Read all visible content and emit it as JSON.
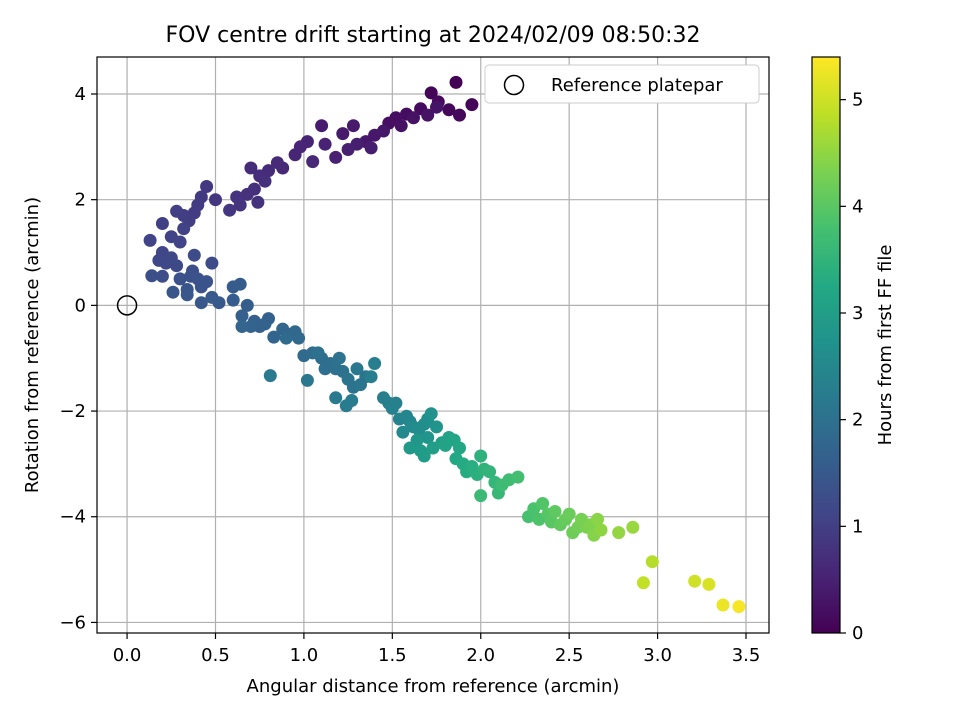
{
  "chart_data": {
    "type": "scatter",
    "title": "FOV centre drift starting at 2024/02/09 08:50:32",
    "xlabel": "Angular distance from reference (arcmin)",
    "ylabel": "Rotation from reference (arcmin)",
    "xlim": [
      -0.17,
      3.63
    ],
    "ylim": [
      -6.2,
      4.7
    ],
    "xticks": [
      0.0,
      0.5,
      1.0,
      1.5,
      2.0,
      2.5,
      3.0,
      3.5
    ],
    "xtick_labels": [
      "0.0",
      "0.5",
      "1.0",
      "1.5",
      "2.0",
      "2.5",
      "3.0",
      "3.5"
    ],
    "yticks": [
      -6,
      -4,
      -2,
      0,
      2,
      4
    ],
    "ytick_labels": [
      "−6",
      "−4",
      "−2",
      "0",
      "2",
      "4"
    ],
    "grid": true,
    "legend": {
      "position": "top-right",
      "entries": [
        "Reference platepar"
      ]
    },
    "reference_point": {
      "x": 0.0,
      "y": 0.0,
      "marker": "hollow-circle"
    },
    "colorbar": {
      "label": "Hours from first FF file",
      "colormap": "viridis",
      "range": [
        0,
        5.4
      ],
      "ticks": [
        0,
        1,
        2,
        3,
        4,
        5
      ],
      "tick_labels": [
        "0",
        "1",
        "2",
        "3",
        "4",
        "5"
      ]
    },
    "series": [
      {
        "fields": [
          "x",
          "y",
          "hours"
        ],
        "points": [
          [
            1.86,
            4.22,
            0.02
          ],
          [
            1.72,
            4.02,
            0.05
          ],
          [
            1.95,
            3.8,
            0.08
          ],
          [
            1.82,
            3.7,
            0.1
          ],
          [
            1.88,
            3.6,
            0.12
          ],
          [
            1.76,
            3.85,
            0.14
          ],
          [
            1.66,
            3.72,
            0.16
          ],
          [
            1.58,
            3.62,
            0.18
          ],
          [
            1.52,
            3.55,
            0.2
          ],
          [
            1.48,
            3.45,
            0.22
          ],
          [
            1.55,
            3.4,
            0.24
          ],
          [
            1.62,
            3.55,
            0.26
          ],
          [
            1.7,
            3.6,
            0.28
          ],
          [
            1.75,
            3.75,
            0.3
          ],
          [
            1.45,
            3.3,
            0.32
          ],
          [
            1.4,
            3.22,
            0.34
          ],
          [
            1.35,
            3.1,
            0.36
          ],
          [
            1.28,
            3.4,
            0.38
          ],
          [
            1.22,
            3.25,
            0.4
          ],
          [
            1.1,
            3.4,
            0.42
          ],
          [
            1.38,
            2.98,
            0.44
          ],
          [
            1.3,
            3.05,
            0.46
          ],
          [
            1.25,
            2.95,
            0.48
          ],
          [
            1.18,
            2.8,
            0.5
          ],
          [
            1.12,
            3.05,
            0.52
          ],
          [
            1.02,
            3.1,
            0.54
          ],
          [
            0.98,
            3.0,
            0.56
          ],
          [
            0.95,
            2.85,
            0.58
          ],
          [
            1.05,
            2.72,
            0.6
          ],
          [
            0.88,
            2.6,
            0.62
          ],
          [
            0.85,
            2.7,
            0.64
          ],
          [
            0.8,
            2.55,
            0.66
          ],
          [
            0.75,
            2.45,
            0.68
          ],
          [
            0.7,
            2.6,
            0.7
          ],
          [
            0.78,
            2.35,
            0.72
          ],
          [
            0.72,
            2.2,
            0.74
          ],
          [
            0.68,
            2.1,
            0.76
          ],
          [
            0.74,
            1.95,
            0.78
          ],
          [
            0.62,
            2.05,
            0.8
          ],
          [
            0.64,
            1.9,
            0.82
          ],
          [
            0.58,
            1.8,
            0.84
          ],
          [
            0.5,
            2.0,
            0.86
          ],
          [
            0.45,
            2.25,
            0.88
          ],
          [
            0.42,
            2.05,
            0.9
          ],
          [
            0.4,
            1.9,
            0.92
          ],
          [
            0.38,
            1.75,
            0.94
          ],
          [
            0.35,
            1.6,
            0.96
          ],
          [
            0.32,
            1.7,
            0.98
          ],
          [
            0.28,
            1.78,
            1.0
          ],
          [
            0.2,
            1.55,
            1.02
          ],
          [
            0.25,
            1.3,
            1.04
          ],
          [
            0.32,
            1.45,
            1.06
          ],
          [
            0.3,
            1.2,
            1.08
          ],
          [
            0.13,
            1.23,
            1.1
          ],
          [
            0.2,
            1.0,
            1.12
          ],
          [
            0.18,
            0.85,
            1.14
          ],
          [
            0.22,
            0.8,
            1.16
          ],
          [
            0.25,
            0.9,
            1.18
          ],
          [
            0.28,
            0.75,
            1.2
          ],
          [
            0.38,
            0.95,
            1.22
          ],
          [
            0.48,
            0.8,
            1.24
          ],
          [
            0.37,
            0.65,
            1.26
          ],
          [
            0.2,
            0.55,
            1.28
          ],
          [
            0.14,
            0.56,
            1.3
          ],
          [
            0.3,
            0.5,
            1.32
          ],
          [
            0.36,
            0.55,
            1.34
          ],
          [
            0.4,
            0.5,
            1.36
          ],
          [
            0.45,
            0.45,
            1.38
          ],
          [
            0.42,
            0.35,
            1.4
          ],
          [
            0.34,
            0.3,
            1.42
          ],
          [
            0.26,
            0.25,
            1.44
          ],
          [
            0.34,
            0.2,
            1.46
          ],
          [
            0.42,
            0.05,
            1.48
          ],
          [
            0.48,
            0.15,
            1.5
          ],
          [
            0.52,
            0.05,
            1.52
          ],
          [
            0.6,
            0.35,
            1.54
          ],
          [
            0.64,
            0.4,
            1.56
          ],
          [
            0.6,
            0.1,
            1.58
          ],
          [
            0.68,
            0.0,
            1.6
          ],
          [
            0.65,
            -0.2,
            1.62
          ],
          [
            0.72,
            -0.3,
            1.64
          ],
          [
            0.75,
            -0.4,
            1.66
          ],
          [
            0.8,
            -0.25,
            1.68
          ],
          [
            0.78,
            -0.35,
            1.7
          ],
          [
            0.7,
            -0.4,
            1.72
          ],
          [
            0.65,
            -0.4,
            1.74
          ],
          [
            0.83,
            -0.6,
            1.76
          ],
          [
            0.88,
            -0.45,
            1.78
          ],
          [
            0.92,
            -0.55,
            1.8
          ],
          [
            0.95,
            -0.5,
            1.82
          ],
          [
            0.97,
            -0.62,
            1.84
          ],
          [
            0.9,
            -0.62,
            1.86
          ],
          [
            1.0,
            -0.95,
            1.88
          ],
          [
            1.05,
            -0.9,
            1.9
          ],
          [
            1.1,
            -1.0,
            1.92
          ],
          [
            1.12,
            -1.2,
            1.94
          ],
          [
            1.15,
            -1.1,
            1.96
          ],
          [
            1.18,
            -1.2,
            1.98
          ],
          [
            1.08,
            -0.9,
            2.0
          ],
          [
            1.2,
            -1.0,
            2.02
          ],
          [
            1.22,
            -1.25,
            2.04
          ],
          [
            1.25,
            -1.4,
            2.06
          ],
          [
            1.28,
            -1.55,
            2.08
          ],
          [
            1.32,
            -1.5,
            2.1
          ],
          [
            1.35,
            -1.35,
            2.12
          ],
          [
            1.3,
            -1.2,
            2.14
          ],
          [
            1.02,
            -1.42,
            2.16
          ],
          [
            0.81,
            -1.33,
            2.18
          ],
          [
            1.18,
            -1.75,
            2.2
          ],
          [
            1.24,
            -1.9,
            2.22
          ],
          [
            1.27,
            -1.8,
            2.24
          ],
          [
            1.38,
            -1.35,
            2.26
          ],
          [
            1.4,
            -1.1,
            2.28
          ],
          [
            1.45,
            -1.75,
            2.3
          ],
          [
            1.48,
            -1.85,
            2.32
          ],
          [
            1.5,
            -1.95,
            2.34
          ],
          [
            1.52,
            -1.85,
            2.36
          ],
          [
            1.54,
            -2.15,
            2.4
          ],
          [
            1.58,
            -2.1,
            2.44
          ],
          [
            1.6,
            -2.2,
            2.48
          ],
          [
            1.56,
            -2.4,
            2.52
          ],
          [
            1.62,
            -2.3,
            2.56
          ],
          [
            1.65,
            -2.35,
            2.6
          ],
          [
            1.68,
            -2.25,
            2.64
          ],
          [
            1.7,
            -2.15,
            2.68
          ],
          [
            1.72,
            -2.05,
            2.72
          ],
          [
            1.75,
            -2.3,
            2.76
          ],
          [
            1.7,
            -2.5,
            2.8
          ],
          [
            1.64,
            -2.55,
            2.84
          ],
          [
            1.6,
            -2.7,
            2.88
          ],
          [
            1.66,
            -2.75,
            2.92
          ],
          [
            1.68,
            -2.85,
            2.96
          ],
          [
            1.73,
            -2.7,
            3.0
          ],
          [
            1.78,
            -2.6,
            3.04
          ],
          [
            1.82,
            -2.5,
            3.08
          ],
          [
            1.8,
            -2.65,
            3.12
          ],
          [
            1.85,
            -2.55,
            3.16
          ],
          [
            1.88,
            -2.7,
            3.2
          ],
          [
            1.86,
            -2.9,
            3.24
          ],
          [
            1.9,
            -3.0,
            3.28
          ],
          [
            1.92,
            -3.15,
            3.32
          ],
          [
            1.95,
            -3.05,
            3.36
          ],
          [
            1.98,
            -3.2,
            3.4
          ],
          [
            2.0,
            -2.85,
            3.44
          ],
          [
            2.02,
            -3.1,
            3.48
          ],
          [
            2.05,
            -3.15,
            3.52
          ],
          [
            2.08,
            -3.35,
            3.56
          ],
          [
            2.1,
            -3.55,
            3.6
          ],
          [
            2.0,
            -3.6,
            3.64
          ],
          [
            2.12,
            -3.4,
            3.68
          ],
          [
            2.16,
            -3.3,
            3.72
          ],
          [
            2.21,
            -3.25,
            3.76
          ],
          [
            2.27,
            -4.0,
            3.8
          ],
          [
            2.3,
            -3.85,
            3.84
          ],
          [
            2.33,
            -4.05,
            3.88
          ],
          [
            2.35,
            -3.75,
            3.92
          ],
          [
            2.38,
            -3.95,
            3.96
          ],
          [
            2.4,
            -4.1,
            4.0
          ],
          [
            2.42,
            -3.9,
            4.04
          ],
          [
            2.45,
            -4.15,
            4.08
          ],
          [
            2.48,
            -4.05,
            4.12
          ],
          [
            2.5,
            -3.95,
            4.16
          ],
          [
            2.52,
            -4.3,
            4.2
          ],
          [
            2.55,
            -4.2,
            4.24
          ],
          [
            2.57,
            -4.05,
            4.28
          ],
          [
            2.6,
            -4.2,
            4.32
          ],
          [
            2.62,
            -4.15,
            4.36
          ],
          [
            2.64,
            -4.35,
            4.4
          ],
          [
            2.66,
            -4.05,
            4.44
          ],
          [
            2.68,
            -4.25,
            4.48
          ],
          [
            2.78,
            -4.3,
            4.52
          ],
          [
            2.86,
            -4.2,
            4.56
          ],
          [
            2.97,
            -4.85,
            4.8
          ],
          [
            2.92,
            -5.25,
            4.9
          ],
          [
            3.21,
            -5.22,
            5.0
          ],
          [
            3.29,
            -5.28,
            5.1
          ],
          [
            3.37,
            -5.67,
            5.25
          ],
          [
            3.46,
            -5.7,
            5.35
          ]
        ]
      }
    ]
  }
}
